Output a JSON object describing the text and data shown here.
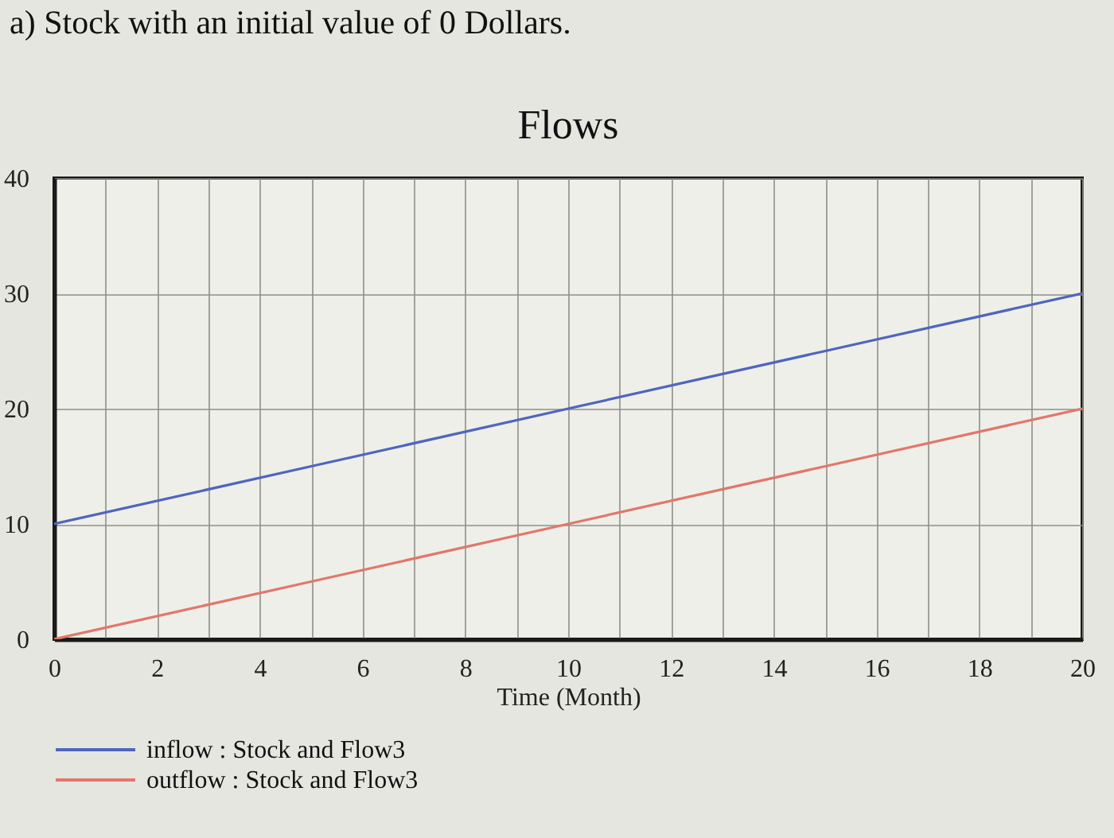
{
  "chart_data": {
    "type": "line",
    "title": "Flows",
    "xlabel": "Time (Month)",
    "annotations": [
      "a) Stock with an initial value of 0 Dollars."
    ],
    "x": [
      0,
      5,
      10,
      15,
      20
    ],
    "series": [
      {
        "name": "inflow : Stock and Flow3",
        "color": "#4f66bd",
        "values": [
          10,
          15,
          20,
          25,
          30
        ]
      },
      {
        "name": "outflow : Stock and Flow3",
        "color": "#e0786b",
        "values": [
          0,
          5,
          10,
          15,
          20
        ]
      }
    ],
    "xlim": [
      0,
      20
    ],
    "xticks": [
      0,
      {
        "value": 1,
        "label": null
      },
      2,
      {
        "value": 3,
        "label": null
      },
      4,
      {
        "value": 5,
        "label": null
      },
      6,
      {
        "value": 7,
        "label": null
      },
      8,
      {
        "value": 9,
        "label": null
      },
      10,
      {
        "value": 11,
        "label": null
      },
      12,
      {
        "value": 13,
        "label": null
      },
      14,
      {
        "value": 15,
        "label": null
      },
      16,
      {
        "value": 17,
        "label": null
      },
      18,
      {
        "value": 19,
        "label": null
      },
      20
    ],
    "ylim": [
      0,
      40
    ],
    "yticks": [
      0,
      10,
      20,
      30,
      40
    ],
    "grid": true,
    "legend": "bottom"
  }
}
